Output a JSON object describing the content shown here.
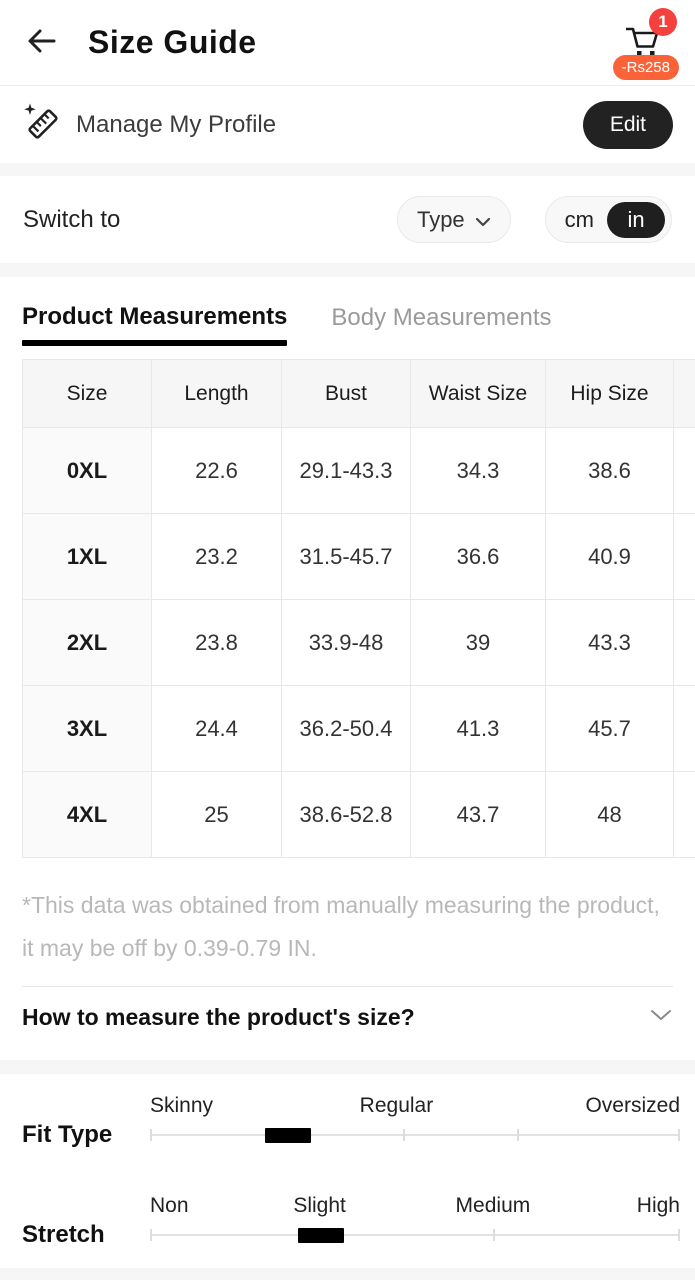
{
  "header": {
    "title": "Size Guide",
    "cart": {
      "badge_count": "1",
      "discount_label": "-Rs258"
    }
  },
  "profile": {
    "label": "Manage My Profile",
    "edit_button": "Edit"
  },
  "switch": {
    "label": "Switch to",
    "type_button": "Type",
    "unit_cm": "cm",
    "unit_in": "in",
    "selected_unit": "in"
  },
  "tabs": {
    "product": "Product Measurements",
    "body": "Body Measurements",
    "active": "Product Measurements"
  },
  "size_table": {
    "columns": [
      "Size",
      "Length",
      "Bust",
      "Waist Size",
      "Hip Size"
    ],
    "rows": [
      {
        "size": "0XL",
        "values": [
          "22.6",
          "29.1-43.3",
          "34.3",
          "38.6"
        ]
      },
      {
        "size": "1XL",
        "values": [
          "23.2",
          "31.5-45.7",
          "36.6",
          "40.9"
        ]
      },
      {
        "size": "2XL",
        "values": [
          "23.8",
          "33.9-48",
          "39",
          "43.3"
        ]
      },
      {
        "size": "3XL",
        "values": [
          "24.4",
          "36.2-50.4",
          "41.3",
          "45.7"
        ]
      },
      {
        "size": "4XL",
        "values": [
          "25",
          "38.6-52.8",
          "43.7",
          "48"
        ]
      }
    ]
  },
  "footnote": "*This data was obtained from manually measuring the product, it may be off by 0.39-0.79 IN.",
  "how_to": {
    "label": "How to measure the product's size?"
  },
  "fit_type": {
    "label": "Fit Type",
    "options": [
      "Skinny",
      "Regular",
      "Oversized"
    ],
    "indicator_left_pct": 26
  },
  "stretch": {
    "label": "Stretch",
    "options": [
      "Non",
      "Slight",
      "Medium",
      "High"
    ],
    "indicator_left_pct": 32.3
  },
  "colors": {
    "badge_red": "#f5413d",
    "accent_orange": "#fa6338",
    "selected_pill_dark": "#1f1f1f",
    "band_gray": "#f6f6f6",
    "table_border": "#e8e8e8",
    "inactive_tab": "#9a9a9a",
    "footnote_gray": "#b8b8b8"
  }
}
